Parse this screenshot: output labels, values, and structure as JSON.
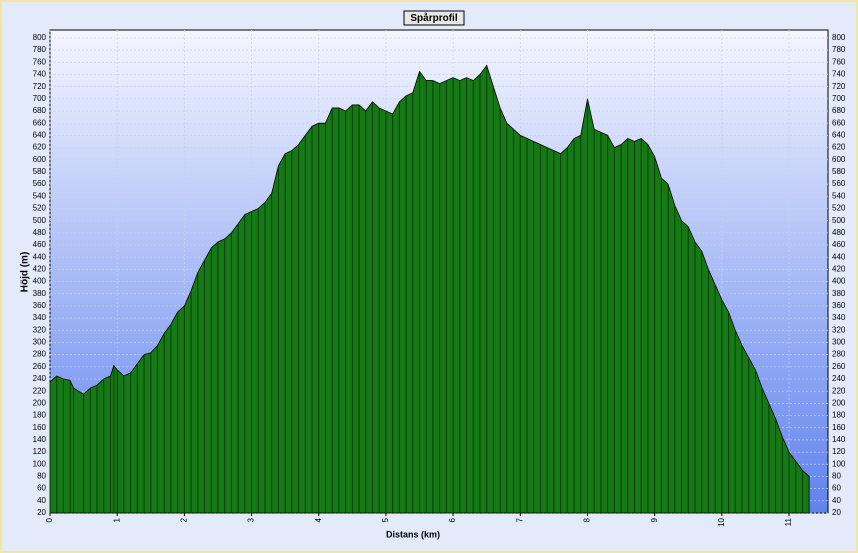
{
  "chart_data": {
    "type": "area",
    "title": "Spårprofil",
    "x_label": "Distans (km)",
    "y_label": "Höjd (m)",
    "x": [
      0,
      0.1,
      0.2,
      0.3,
      0.35,
      0.5,
      0.6,
      0.7,
      0.8,
      0.9,
      0.95,
      1.0,
      1.1,
      1.2,
      1.3,
      1.4,
      1.5,
      1.6,
      1.7,
      1.8,
      1.9,
      2.0,
      2.1,
      2.2,
      2.3,
      2.4,
      2.5,
      2.6,
      2.7,
      2.8,
      2.9,
      3.0,
      3.1,
      3.2,
      3.3,
      3.4,
      3.5,
      3.6,
      3.7,
      3.8,
      3.9,
      4.0,
      4.1,
      4.2,
      4.3,
      4.4,
      4.5,
      4.6,
      4.7,
      4.8,
      4.9,
      5.0,
      5.1,
      5.2,
      5.3,
      5.4,
      5.5,
      5.6,
      5.7,
      5.8,
      5.9,
      6.0,
      6.1,
      6.2,
      6.3,
      6.4,
      6.5,
      6.6,
      6.7,
      6.8,
      6.9,
      7.0,
      7.1,
      7.2,
      7.3,
      7.4,
      7.5,
      7.6,
      7.7,
      7.8,
      7.9,
      8.0,
      8.1,
      8.2,
      8.3,
      8.4,
      8.5,
      8.6,
      8.7,
      8.8,
      8.9,
      9.0,
      9.1,
      9.2,
      9.3,
      9.4,
      9.5,
      9.6,
      9.7,
      9.8,
      9.9,
      10.0,
      10.1,
      10.2,
      10.3,
      10.4,
      10.5,
      10.6,
      10.7,
      10.8,
      10.9,
      11.0,
      11.1,
      11.2,
      11.3
    ],
    "series": [
      {
        "name": "Höjd",
        "color": "#157a15",
        "values": [
          235,
          245,
          240,
          238,
          225,
          215,
          225,
          230,
          240,
          245,
          262,
          255,
          245,
          250,
          265,
          280,
          283,
          295,
          315,
          330,
          350,
          360,
          385,
          415,
          435,
          455,
          465,
          470,
          480,
          495,
          510,
          515,
          520,
          530,
          545,
          590,
          610,
          615,
          625,
          640,
          655,
          660,
          660,
          685,
          685,
          680,
          690,
          690,
          680,
          695,
          685,
          680,
          675,
          695,
          705,
          710,
          745,
          730,
          730,
          725,
          730,
          735,
          730,
          735,
          730,
          740,
          755,
          720,
          685,
          660,
          650,
          640,
          635,
          630,
          625,
          620,
          615,
          610,
          620,
          635,
          640,
          700,
          650,
          645,
          640,
          620,
          625,
          635,
          630,
          635,
          625,
          605,
          570,
          560,
          525,
          500,
          490,
          465,
          450,
          420,
          395,
          370,
          350,
          320,
          295,
          275,
          255,
          225,
          200,
          175,
          145,
          120,
          105,
          90,
          80
        ]
      }
    ],
    "xlim": [
      0,
      11.58
    ],
    "ylim": [
      20,
      813
    ],
    "xticks": [
      0,
      1,
      2,
      3,
      4,
      5,
      6,
      7,
      8,
      9,
      10,
      11
    ],
    "yticks": [
      20,
      40,
      60,
      80,
      100,
      120,
      140,
      160,
      180,
      200,
      220,
      240,
      260,
      280,
      300,
      320,
      340,
      360,
      380,
      400,
      420,
      440,
      460,
      480,
      500,
      520,
      540,
      560,
      580,
      600,
      620,
      640,
      660,
      680,
      700,
      720,
      740,
      760,
      780,
      800
    ],
    "grid": true
  }
}
